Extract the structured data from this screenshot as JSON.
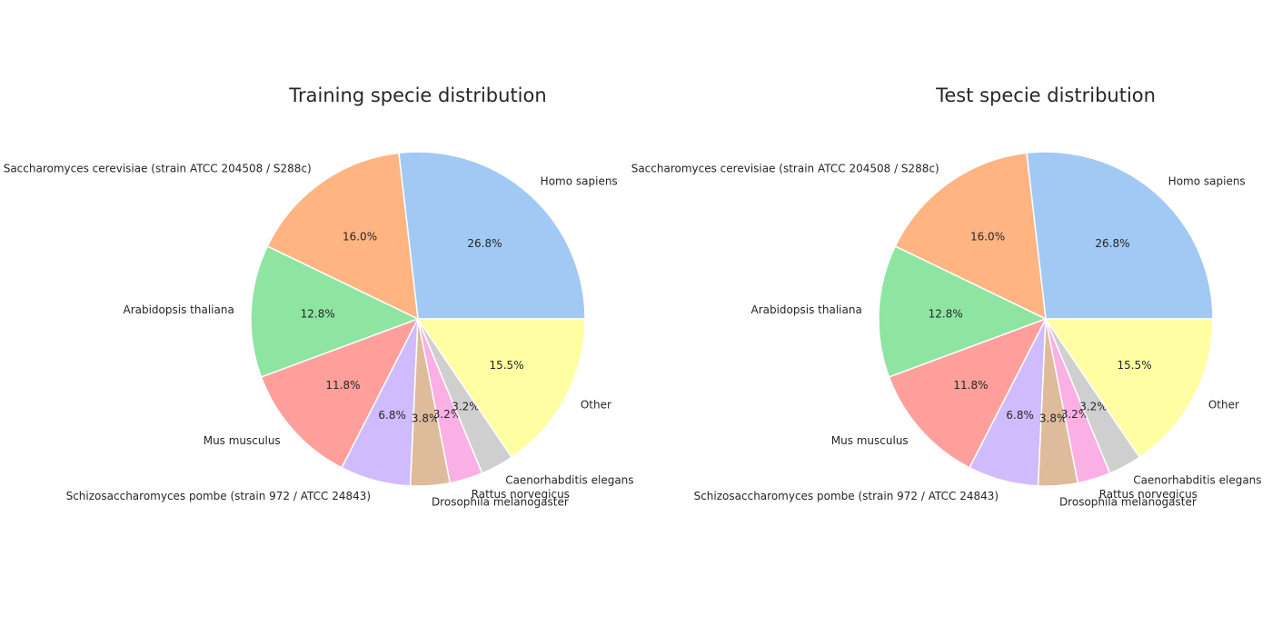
{
  "chart_data": [
    {
      "type": "pie",
      "title": "Training specie distribution",
      "start_angle_deg": 0,
      "direction": "counterclockwise",
      "slices": [
        {
          "label": "Homo sapiens",
          "value": 26.8,
          "pct_text": "26.8%",
          "color": "#a1c9f4"
        },
        {
          "label": "Saccharomyces cerevisiae (strain ATCC 204508 / S288c)",
          "value": 16.0,
          "pct_text": "16.0%",
          "color": "#ffb482"
        },
        {
          "label": "Arabidopsis thaliana",
          "value": 12.8,
          "pct_text": "12.8%",
          "color": "#8de5a1"
        },
        {
          "label": "Mus musculus",
          "value": 11.8,
          "pct_text": "11.8%",
          "color": "#ff9f9b"
        },
        {
          "label": "Schizosaccharomyces pombe (strain 972 / ATCC 24843)",
          "value": 6.8,
          "pct_text": "6.8%",
          "color": "#d0bbff"
        },
        {
          "label": "Drosophila melanogaster",
          "value": 3.8,
          "pct_text": "3.8%",
          "color": "#debb9b"
        },
        {
          "label": "Rattus norvegicus",
          "value": 3.2,
          "pct_text": "3.2%",
          "color": "#fab0e4"
        },
        {
          "label": "Caenorhabditis elegans",
          "value": 3.2,
          "pct_text": "3.2%",
          "color": "#cfcfcf"
        },
        {
          "label": "Other",
          "value": 15.5,
          "pct_text": "15.5%",
          "color": "#fffea3"
        }
      ]
    },
    {
      "type": "pie",
      "title": "Test specie distribution",
      "start_angle_deg": 0,
      "direction": "counterclockwise",
      "slices": [
        {
          "label": "Homo sapiens",
          "value": 26.8,
          "pct_text": "26.8%",
          "color": "#a1c9f4"
        },
        {
          "label": "Saccharomyces cerevisiae (strain ATCC 204508 / S288c)",
          "value": 16.0,
          "pct_text": "16.0%",
          "color": "#ffb482"
        },
        {
          "label": "Arabidopsis thaliana",
          "value": 12.8,
          "pct_text": "12.8%",
          "color": "#8de5a1"
        },
        {
          "label": "Mus musculus",
          "value": 11.8,
          "pct_text": "11.8%",
          "color": "#ff9f9b"
        },
        {
          "label": "Schizosaccharomyces pombe (strain 972 / ATCC 24843)",
          "value": 6.8,
          "pct_text": "6.8%",
          "color": "#d0bbff"
        },
        {
          "label": "Drosophila melanogaster",
          "value": 3.8,
          "pct_text": "3.8%",
          "color": "#debb9b"
        },
        {
          "label": "Rattus norvegicus",
          "value": 3.2,
          "pct_text": "3.2%",
          "color": "#fab0e4"
        },
        {
          "label": "Caenorhabditis elegans",
          "value": 3.2,
          "pct_text": "3.2%",
          "color": "#cfcfcf"
        },
        {
          "label": "Other",
          "value": 15.5,
          "pct_text": "15.5%",
          "color": "#fffea3"
        }
      ]
    }
  ]
}
